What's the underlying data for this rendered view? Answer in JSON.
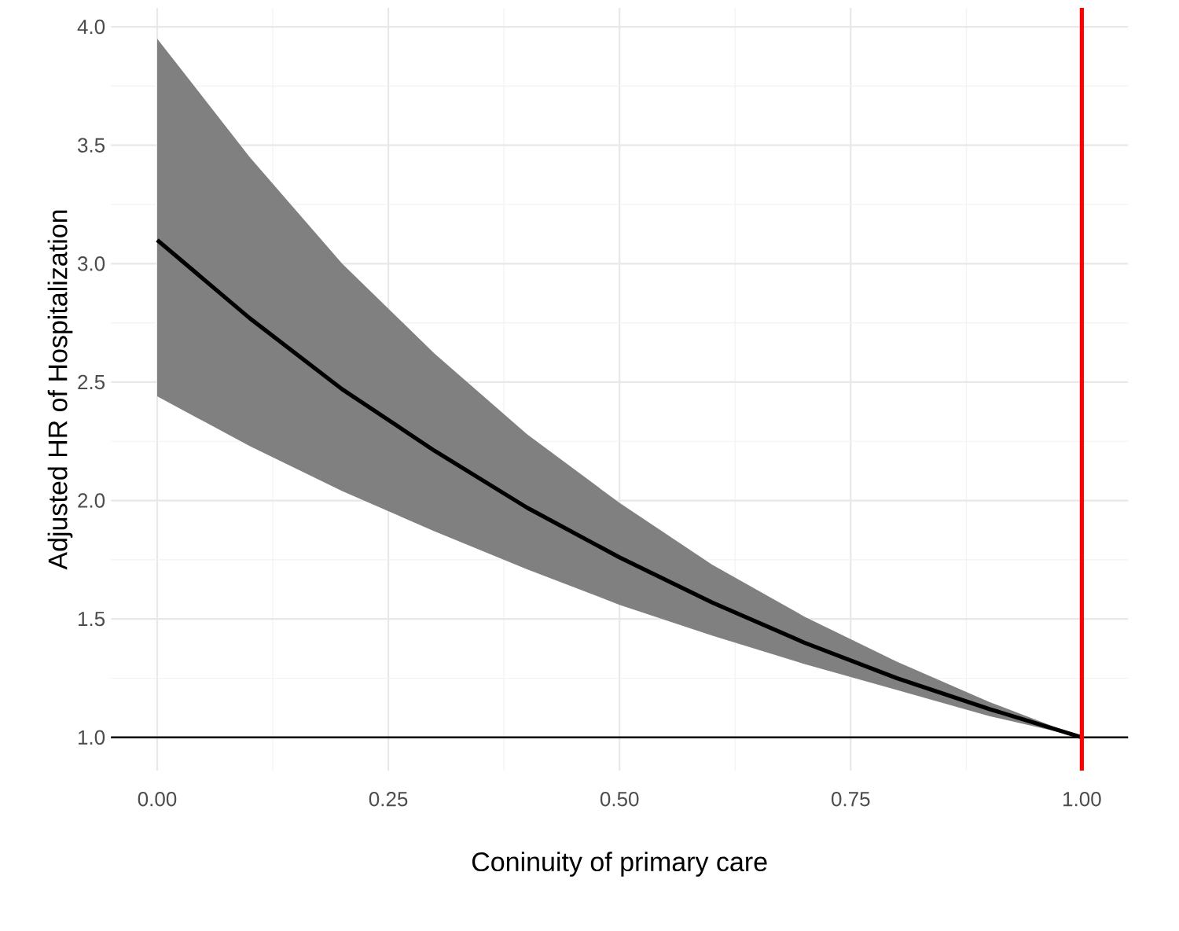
{
  "chart_data": {
    "type": "line",
    "xlabel": "Coninuity of primary care",
    "ylabel": "Adjusted HR of Hospitalization",
    "x": [
      0,
      0.1,
      0.2,
      0.3,
      0.4,
      0.5,
      0.6,
      0.7,
      0.8,
      0.9,
      1.0
    ],
    "series": [
      {
        "color": "#000000",
        "values": [
          3.1,
          2.77,
          2.47,
          2.21,
          1.97,
          1.76,
          1.57,
          1.4,
          1.25,
          1.12,
          1.0
        ],
        "lower": [
          2.44,
          2.23,
          2.04,
          1.87,
          1.71,
          1.56,
          1.43,
          1.31,
          1.2,
          1.09,
          1.0
        ],
        "upper": [
          3.95,
          3.45,
          3.0,
          2.62,
          2.28,
          1.99,
          1.73,
          1.51,
          1.32,
          1.15,
          1.0
        ]
      }
    ],
    "xlim": [
      -0.05,
      1.05
    ],
    "ylim": [
      0.86,
      4.08
    ],
    "xticks": [
      {
        "value": 0,
        "label": "0.00"
      },
      {
        "value": 0.25,
        "label": "0.25"
      },
      {
        "value": 0.5,
        "label": "0.50"
      },
      {
        "value": 0.75,
        "label": "0.75"
      },
      {
        "value": 1,
        "label": "1.00"
      }
    ],
    "yticks": [
      {
        "value": 1,
        "label": "1.0"
      },
      {
        "value": 1.5,
        "label": "1.5"
      },
      {
        "value": 2,
        "label": "2.0"
      },
      {
        "value": 2.5,
        "label": "2.5"
      },
      {
        "value": 3,
        "label": "3.0"
      },
      {
        "value": 3.5,
        "label": "3.5"
      },
      {
        "value": 4,
        "label": "4.0"
      }
    ],
    "grid": true,
    "ref_lines": [
      {
        "axis": "y",
        "value": 1,
        "color": "#000000"
      },
      {
        "axis": "x",
        "value": 1,
        "color": "#ff0000"
      }
    ]
  }
}
